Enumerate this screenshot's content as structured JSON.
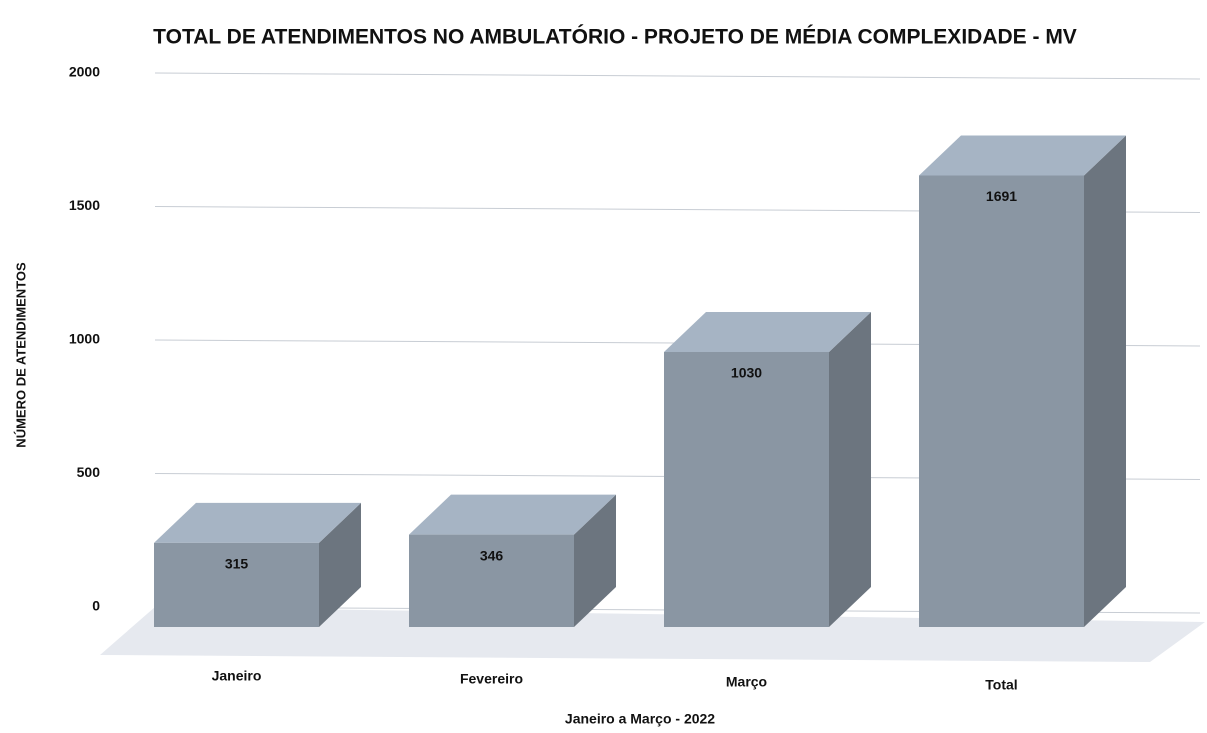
{
  "chart_data": {
    "type": "bar3d",
    "title": "TOTAL DE ATENDIMENTOS NO AMBULATÓRIO - PROJETO DE MÉDIA COMPLEXIDADE - MV",
    "x_label": "Janeiro a Março - 2022",
    "y_label": "NÚMERO DE ATENDIMENTOS",
    "categories": [
      "Janeiro",
      "Fevereiro",
      "Março",
      "Total"
    ],
    "values": [
      315,
      346,
      1030,
      1691
    ],
    "color": "#8a96a3",
    "ylim": [
      0,
      2000
    ],
    "yticks": [
      0,
      500,
      1000,
      1500,
      2000
    ],
    "grid": true
  }
}
